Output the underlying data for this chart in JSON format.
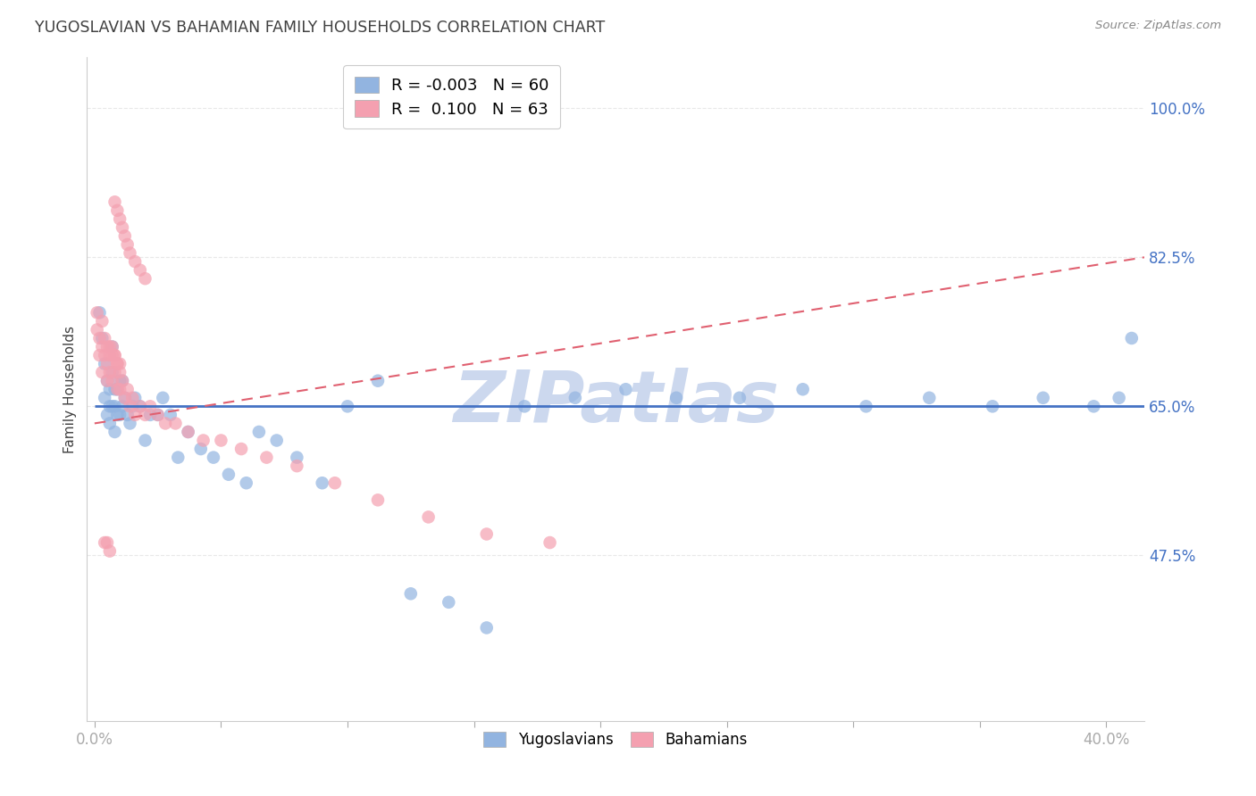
{
  "title": "YUGOSLAVIAN VS BAHAMIAN FAMILY HOUSEHOLDS CORRELATION CHART",
  "source": "Source: ZipAtlas.com",
  "ylabel": "Family Households",
  "ytick_labels": [
    "100.0%",
    "82.5%",
    "65.0%",
    "47.5%"
  ],
  "ytick_values": [
    1.0,
    0.825,
    0.65,
    0.475
  ],
  "ymin": 0.28,
  "ymax": 1.06,
  "xmin": -0.003,
  "xmax": 0.415,
  "R_yugoslavian": -0.003,
  "N_yugoslavian": 60,
  "R_bahamian": 0.1,
  "N_bahamian": 63,
  "color_yugoslavian": "#92b4e0",
  "color_bahamian": "#f4a0b0",
  "trend_color_yugoslavian": "#4472c4",
  "trend_color_bahamian": "#e06070",
  "watermark_color": "#ccd8ee",
  "background_color": "#ffffff",
  "grid_color": "#e8e8e8",
  "axis_label_color": "#4472c4",
  "title_color": "#404040",
  "source_color": "#888888",
  "legend_box_color_yug": "#92b4e0",
  "legend_box_color_bah": "#f4a0b0",
  "yugoslavian_x": [
    0.002,
    0.003,
    0.004,
    0.004,
    0.005,
    0.005,
    0.006,
    0.006,
    0.006,
    0.007,
    0.007,
    0.007,
    0.008,
    0.008,
    0.008,
    0.009,
    0.009,
    0.01,
    0.01,
    0.011,
    0.011,
    0.012,
    0.013,
    0.014,
    0.015,
    0.016,
    0.018,
    0.02,
    0.022,
    0.025,
    0.027,
    0.03,
    0.033,
    0.037,
    0.042,
    0.047,
    0.053,
    0.06,
    0.065,
    0.072,
    0.08,
    0.09,
    0.1,
    0.112,
    0.125,
    0.14,
    0.155,
    0.17,
    0.19,
    0.21,
    0.23,
    0.255,
    0.28,
    0.305,
    0.33,
    0.355,
    0.375,
    0.395,
    0.405,
    0.41
  ],
  "yugoslavian_y": [
    0.76,
    0.73,
    0.7,
    0.66,
    0.68,
    0.64,
    0.67,
    0.65,
    0.63,
    0.72,
    0.69,
    0.65,
    0.67,
    0.65,
    0.62,
    0.67,
    0.64,
    0.68,
    0.64,
    0.68,
    0.65,
    0.66,
    0.64,
    0.63,
    0.65,
    0.66,
    0.65,
    0.61,
    0.64,
    0.64,
    0.66,
    0.64,
    0.59,
    0.62,
    0.6,
    0.59,
    0.57,
    0.56,
    0.62,
    0.61,
    0.59,
    0.56,
    0.65,
    0.68,
    0.43,
    0.42,
    0.39,
    0.65,
    0.66,
    0.67,
    0.66,
    0.66,
    0.67,
    0.65,
    0.66,
    0.65,
    0.66,
    0.65,
    0.66,
    0.73
  ],
  "bahamian_x": [
    0.001,
    0.001,
    0.002,
    0.002,
    0.003,
    0.003,
    0.003,
    0.004,
    0.004,
    0.005,
    0.005,
    0.005,
    0.006,
    0.006,
    0.007,
    0.007,
    0.008,
    0.008,
    0.009,
    0.009,
    0.01,
    0.01,
    0.011,
    0.012,
    0.013,
    0.014,
    0.015,
    0.016,
    0.018,
    0.02,
    0.022,
    0.025,
    0.028,
    0.032,
    0.037,
    0.043,
    0.05,
    0.058,
    0.068,
    0.08,
    0.095,
    0.112,
    0.132,
    0.155,
    0.18,
    0.008,
    0.009,
    0.01,
    0.011,
    0.012,
    0.013,
    0.014,
    0.016,
    0.018,
    0.02,
    0.006,
    0.007,
    0.008,
    0.009,
    0.01,
    0.004,
    0.005,
    0.006
  ],
  "bahamian_y": [
    0.76,
    0.74,
    0.73,
    0.71,
    0.75,
    0.72,
    0.69,
    0.73,
    0.71,
    0.72,
    0.7,
    0.68,
    0.71,
    0.69,
    0.71,
    0.68,
    0.71,
    0.69,
    0.7,
    0.67,
    0.7,
    0.67,
    0.68,
    0.66,
    0.67,
    0.65,
    0.66,
    0.64,
    0.65,
    0.64,
    0.65,
    0.64,
    0.63,
    0.63,
    0.62,
    0.61,
    0.61,
    0.6,
    0.59,
    0.58,
    0.56,
    0.54,
    0.52,
    0.5,
    0.49,
    0.89,
    0.88,
    0.87,
    0.86,
    0.85,
    0.84,
    0.83,
    0.82,
    0.81,
    0.8,
    0.72,
    0.72,
    0.71,
    0.7,
    0.69,
    0.49,
    0.49,
    0.48
  ],
  "yug_trendline_x": [
    0.0,
    0.415
  ],
  "yug_trendline_y": [
    0.65,
    0.65
  ],
  "bah_trendline_x": [
    0.0,
    0.415
  ],
  "bah_trendline_y": [
    0.63,
    0.825
  ]
}
